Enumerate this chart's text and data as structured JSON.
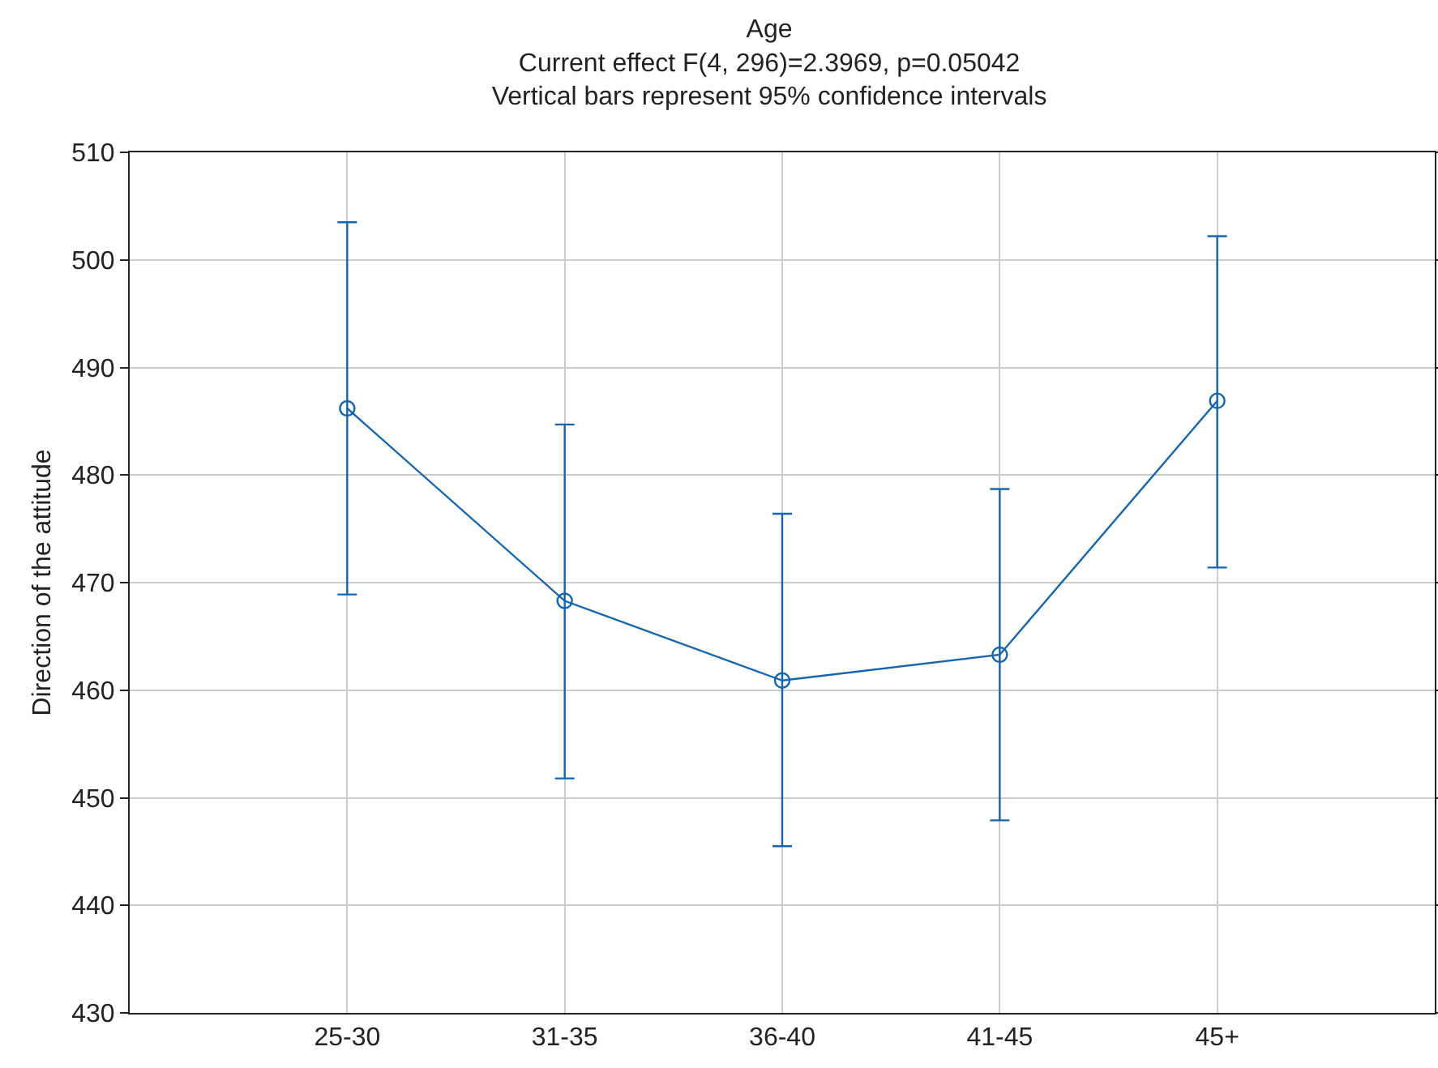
{
  "chart_data": {
    "type": "line",
    "title": "Age",
    "subtitle": "Current effect F(4, 296)=2.3969, p=0.05042\nVertical bars represent 95% confidence intervals",
    "ylabel": "Direction of the attitude",
    "categories": [
      "25-30",
      "31-35",
      "36-40",
      "41-45",
      "45+"
    ],
    "series": [
      {
        "color": "#1565b0",
        "values": [
          486.2,
          468.3,
          460.9,
          463.3,
          486.9
        ],
        "errors": [
          [
            468.9,
            503.5
          ],
          [
            451.8,
            484.7
          ],
          [
            445.5,
            476.4
          ],
          [
            447.9,
            478.7
          ],
          [
            471.4,
            502.2
          ]
        ]
      }
    ],
    "ylim": [
      430,
      510
    ],
    "yticks": [
      430,
      440,
      450,
      460,
      470,
      480,
      490,
      500,
      510
    ],
    "grid": true,
    "marker": "circle",
    "line_style": "solid"
  }
}
